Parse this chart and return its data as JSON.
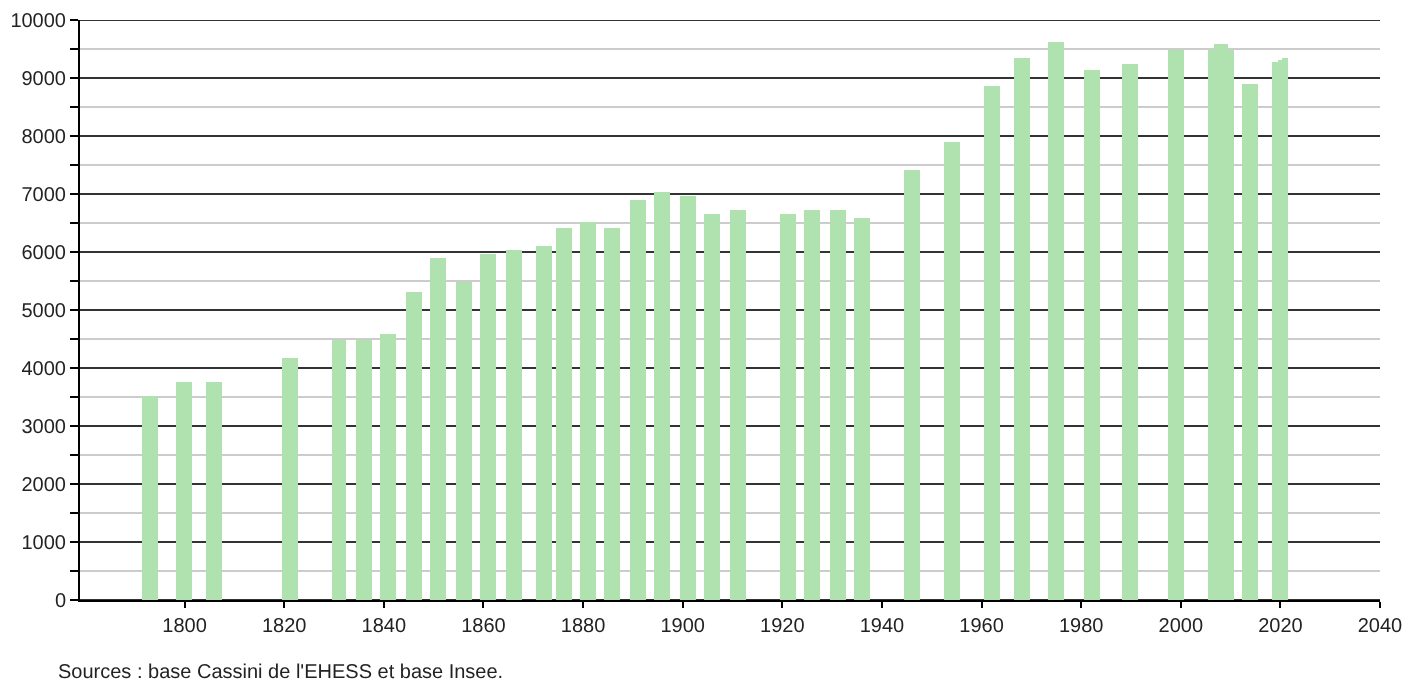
{
  "chart_data": {
    "type": "bar",
    "x": [
      1793,
      1800,
      1806,
      1821,
      1831,
      1836,
      1841,
      1846,
      1851,
      1856,
      1861,
      1866,
      1872,
      1876,
      1881,
      1886,
      1891,
      1896,
      1901,
      1906,
      1911,
      1921,
      1926,
      1931,
      1936,
      1946,
      1954,
      1962,
      1968,
      1975,
      1982,
      1990,
      1999,
      2006,
      2007,
      2008,
      2009,
      2010,
      2014,
      2019,
      2020,
      2021
    ],
    "values": [
      3530,
      3770,
      3770,
      4170,
      4480,
      4480,
      4600,
      5300,
      5880,
      5470,
      5950,
      6040,
      6110,
      6420,
      6530,
      6430,
      6910,
      7020,
      6960,
      6670,
      6710,
      6650,
      6710,
      6710,
      6570,
      7400,
      7890,
      8870,
      9350,
      9620,
      9150,
      9250,
      9480,
      9470,
      9600,
      9600,
      9580,
      9480,
      8900,
      9270,
      9310,
      9330
    ],
    "color": "#b0e2b0",
    "xlim": [
      1779,
      2040
    ],
    "xticks": [
      1800,
      1820,
      1840,
      1860,
      1880,
      1900,
      1920,
      1940,
      1960,
      1980,
      2000,
      2020,
      2040
    ],
    "ylim": [
      0,
      10000
    ],
    "yticks": [
      0,
      {
        "value": 500,
        "label": null
      },
      1000,
      {
        "value": 1500,
        "label": null
      },
      2000,
      {
        "value": 2500,
        "label": null
      },
      3000,
      {
        "value": 3500,
        "label": null
      },
      4000,
      {
        "value": 4500,
        "label": null
      },
      5000,
      {
        "value": 5500,
        "label": null
      },
      6000,
      {
        "value": 6500,
        "label": null
      },
      7000,
      {
        "value": 7500,
        "label": null
      },
      8000,
      {
        "value": 8500,
        "label": null
      },
      9000,
      {
        "value": 9500,
        "label": null
      },
      10000
    ],
    "grid": "y",
    "annotations": [
      "Sources : base Cassini de l'EHESS et base Insee."
    ]
  }
}
